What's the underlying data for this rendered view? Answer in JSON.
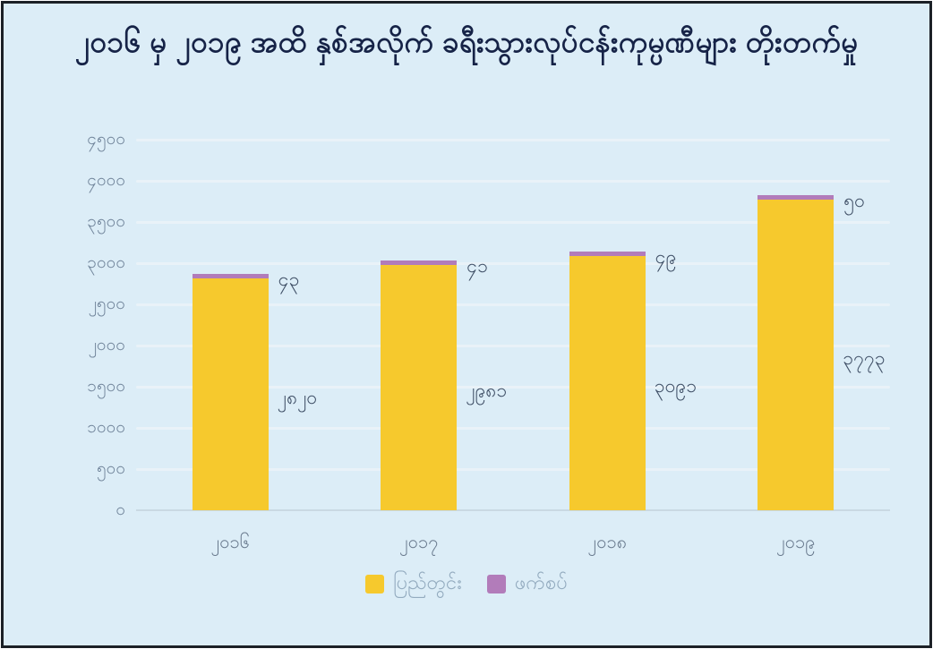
{
  "title": "၂၀၁၆ မှ ၂၀၁၉ အထိ နှစ်အလိုက် ခရီးသွားလုပ်ငန်းကုမ္ပဏီများ တိုးတက်မှု",
  "colors": {
    "background": "#dcedf7",
    "frame_border": "#1c2127",
    "title_text": "#162347",
    "axis_label": "#70849a",
    "xaxis_label": "#68798d",
    "value_label": "#3f4f66",
    "legend_label": "#93abbf",
    "gridline": "#e9f2f8",
    "axis_line": "#c9d9e3",
    "series_domestic": "#f6c92d",
    "series_joint_venture": "#b27cba"
  },
  "chart_data": {
    "type": "bar",
    "stacked": true,
    "title": "၂၀၁၆ မှ ၂၀၁၉ အထိ နှစ်အလိုက် ခရီးသွားလုပ်ငန်းကုမ္ပဏီများ တိုးတက်မှု",
    "categories": [
      "၂၀၁၆",
      "၂၀၁၇",
      "၂၀၁၈",
      "၂၀၁၉"
    ],
    "category_values": [
      2016,
      2017,
      2018,
      2019
    ],
    "series": [
      {
        "name": "ပြည်တွင်း",
        "color": "#f6c92d",
        "values": [
          2820,
          2981,
          3091,
          3773
        ],
        "value_labels": [
          "၂၈၂၀",
          "၂၉၈၁",
          "၃၀၉၁",
          "၃၇၇၃"
        ]
      },
      {
        "name": "ဖက်စပ်",
        "color": "#b27cba",
        "values": [
          43,
          41,
          49,
          50
        ],
        "value_labels": [
          "၄၃",
          "၄၁",
          "၄၉",
          "၅၀"
        ]
      }
    ],
    "ylim": [
      0,
      4500
    ],
    "ytick_step": 500,
    "ytick_labels": [
      "၀",
      "၅၀၀",
      "၁၀၀၀",
      "၁၅၀၀",
      "၂၀၀၀",
      "၂၅၀၀",
      "၃၀၀၀",
      "၃၅၀၀",
      "၄၀၀၀",
      "၄၅၀၀"
    ],
    "grid": true,
    "legend_position": "bottom"
  }
}
